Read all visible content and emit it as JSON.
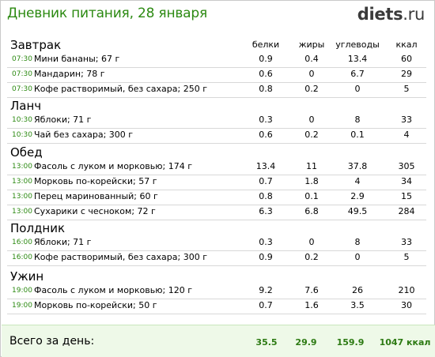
{
  "header": {
    "title": "Дневник питания, 28 января",
    "logo_main": "diets",
    "logo_suffix": ".ru"
  },
  "columns": {
    "protein": "белки",
    "fat": "жиры",
    "carbs": "углеводы",
    "kcal": "ккал"
  },
  "meals": [
    {
      "title": "Завтрак",
      "items": [
        {
          "time": "07:30",
          "name": "Мини бананы; 67 г",
          "protein": "0.9",
          "fat": "0.4",
          "carbs": "13.4",
          "kcal": "60"
        },
        {
          "time": "07:30",
          "name": "Мандарин; 78 г",
          "protein": "0.6",
          "fat": "0",
          "carbs": "6.7",
          "kcal": "29"
        },
        {
          "time": "07:30",
          "name": "Кофе растворимый, без сахара; 250 г",
          "protein": "0.8",
          "fat": "0.2",
          "carbs": "0",
          "kcal": "5"
        }
      ]
    },
    {
      "title": "Ланч",
      "items": [
        {
          "time": "10:30",
          "name": "Яблоки; 71 г",
          "protein": "0.3",
          "fat": "0",
          "carbs": "8",
          "kcal": "33"
        },
        {
          "time": "10:30",
          "name": "Чай без сахара; 300 г",
          "protein": "0.6",
          "fat": "0.2",
          "carbs": "0.1",
          "kcal": "4"
        }
      ]
    },
    {
      "title": "Обед",
      "items": [
        {
          "time": "13:00",
          "name": "Фасоль с луком и морковью; 174 г",
          "protein": "13.4",
          "fat": "11",
          "carbs": "37.8",
          "kcal": "305"
        },
        {
          "time": "13:00",
          "name": "Морковь по-корейски; 57 г",
          "protein": "0.7",
          "fat": "1.8",
          "carbs": "4",
          "kcal": "34"
        },
        {
          "time": "13:00",
          "name": "Перец маринованный; 60 г",
          "protein": "0.8",
          "fat": "0.1",
          "carbs": "2.9",
          "kcal": "15"
        },
        {
          "time": "13:00",
          "name": "Сухарики с чесноком; 72 г",
          "protein": "6.3",
          "fat": "6.8",
          "carbs": "49.5",
          "kcal": "284"
        }
      ]
    },
    {
      "title": "Полдник",
      "items": [
        {
          "time": "16:00",
          "name": "Яблоки; 71 г",
          "protein": "0.3",
          "fat": "0",
          "carbs": "8",
          "kcal": "33"
        },
        {
          "time": "16:00",
          "name": "Кофе растворимый, без сахара; 300 г",
          "protein": "0.9",
          "fat": "0.2",
          "carbs": "0",
          "kcal": "5"
        }
      ]
    },
    {
      "title": "Ужин",
      "items": [
        {
          "time": "19:00",
          "name": "Фасоль с луком и морковью; 120 г",
          "protein": "9.2",
          "fat": "7.6",
          "carbs": "26",
          "kcal": "210"
        },
        {
          "time": "19:00",
          "name": "Морковь по-корейски; 50 г",
          "protein": "0.7",
          "fat": "1.6",
          "carbs": "3.5",
          "kcal": "30"
        }
      ]
    }
  ],
  "totals": {
    "label": "Всего за день:",
    "protein": "35.5",
    "fat": "29.9",
    "carbs": "159.9",
    "kcal": "1047 ккал"
  },
  "colors": {
    "accent_green": "#2c8a12",
    "total_background": "#eef9e8"
  }
}
